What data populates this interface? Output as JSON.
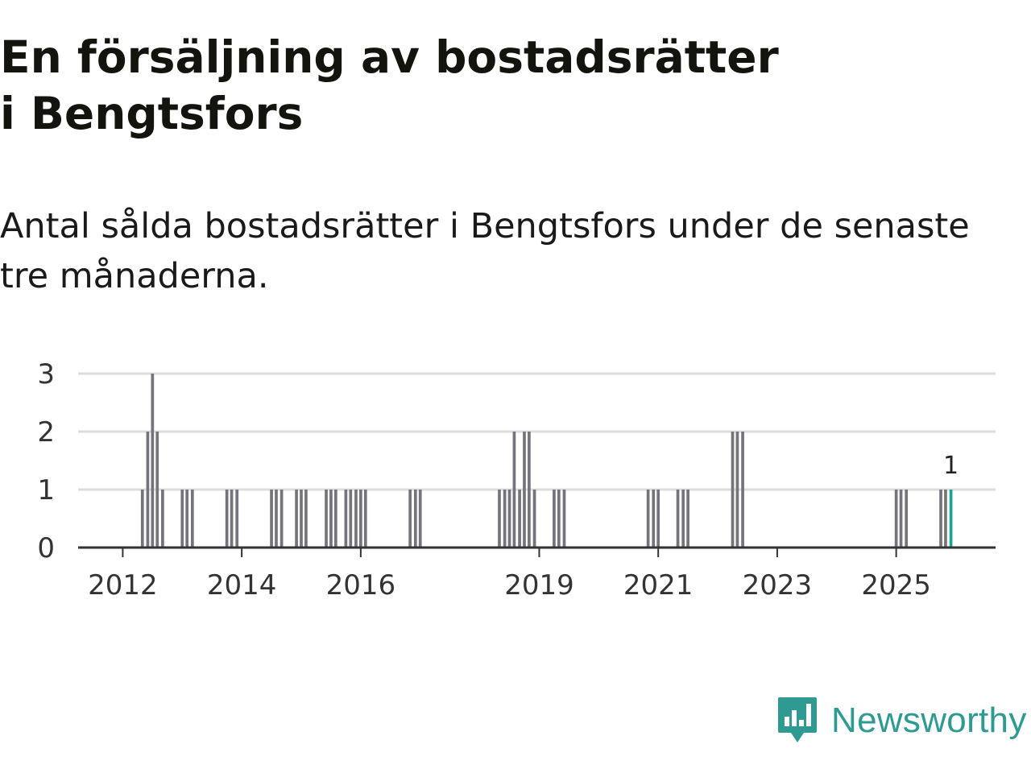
{
  "header": {
    "title": "En försäljning av bostadsrätter i Bengtsfors",
    "subtitle": "Antal sålda bostadsrätter i Bengtsfors under de senaste tre månaderna."
  },
  "brand": {
    "name": "Newsworthy",
    "color": "#2e9a92"
  },
  "colors": {
    "bar": "#75737b",
    "highlight": "#1aa394",
    "grid": "#dddddd",
    "axis": "#333333"
  },
  "chart_data": {
    "type": "bar",
    "title": "En försäljning av bostadsrätter i Bengtsfors",
    "subtitle": "Antal sålda bostadsrätter i Bengtsfors under de senaste tre månaderna.",
    "xlabel": "",
    "ylabel": "",
    "ylim": [
      0,
      3
    ],
    "xlim": [
      2011.25,
      2026.67
    ],
    "grid": true,
    "y_ticks": [
      0,
      1,
      2,
      3
    ],
    "x_ticks": [
      2012,
      2014,
      2016,
      2019,
      2021,
      2023,
      2025
    ],
    "bar_width_years": 0.05,
    "series": [
      {
        "name": "Sålda bostadsrätter",
        "points": [
          {
            "x": 2012.33,
            "y": 1
          },
          {
            "x": 2012.42,
            "y": 2
          },
          {
            "x": 2012.5,
            "y": 3
          },
          {
            "x": 2012.58,
            "y": 2
          },
          {
            "x": 2012.67,
            "y": 1
          },
          {
            "x": 2013.0,
            "y": 1
          },
          {
            "x": 2013.08,
            "y": 1
          },
          {
            "x": 2013.17,
            "y": 1
          },
          {
            "x": 2013.75,
            "y": 1
          },
          {
            "x": 2013.83,
            "y": 1
          },
          {
            "x": 2013.92,
            "y": 1
          },
          {
            "x": 2014.5,
            "y": 1
          },
          {
            "x": 2014.58,
            "y": 1
          },
          {
            "x": 2014.67,
            "y": 1
          },
          {
            "x": 2014.92,
            "y": 1
          },
          {
            "x": 2015.0,
            "y": 1
          },
          {
            "x": 2015.08,
            "y": 1
          },
          {
            "x": 2015.42,
            "y": 1
          },
          {
            "x": 2015.5,
            "y": 1
          },
          {
            "x": 2015.58,
            "y": 1
          },
          {
            "x": 2015.75,
            "y": 1
          },
          {
            "x": 2015.83,
            "y": 1
          },
          {
            "x": 2015.92,
            "y": 1
          },
          {
            "x": 2016.0,
            "y": 1
          },
          {
            "x": 2016.08,
            "y": 1
          },
          {
            "x": 2016.83,
            "y": 1
          },
          {
            "x": 2016.92,
            "y": 1
          },
          {
            "x": 2017.0,
            "y": 1
          },
          {
            "x": 2018.33,
            "y": 1
          },
          {
            "x": 2018.42,
            "y": 1
          },
          {
            "x": 2018.5,
            "y": 1
          },
          {
            "x": 2018.58,
            "y": 2
          },
          {
            "x": 2018.67,
            "y": 1
          },
          {
            "x": 2018.75,
            "y": 2
          },
          {
            "x": 2018.83,
            "y": 2
          },
          {
            "x": 2018.92,
            "y": 1
          },
          {
            "x": 2019.25,
            "y": 1
          },
          {
            "x": 2019.33,
            "y": 1
          },
          {
            "x": 2019.42,
            "y": 1
          },
          {
            "x": 2020.83,
            "y": 1
          },
          {
            "x": 2020.92,
            "y": 1
          },
          {
            "x": 2021.0,
            "y": 1
          },
          {
            "x": 2021.33,
            "y": 1
          },
          {
            "x": 2021.42,
            "y": 1
          },
          {
            "x": 2021.5,
            "y": 1
          },
          {
            "x": 2022.25,
            "y": 2
          },
          {
            "x": 2022.33,
            "y": 2
          },
          {
            "x": 2022.42,
            "y": 2
          },
          {
            "x": 2025.0,
            "y": 1
          },
          {
            "x": 2025.08,
            "y": 1
          },
          {
            "x": 2025.17,
            "y": 1
          },
          {
            "x": 2025.75,
            "y": 1
          },
          {
            "x": 2025.83,
            "y": 1
          },
          {
            "x": 2025.92,
            "y": 1,
            "highlight": true
          }
        ]
      }
    ],
    "annotations": [
      {
        "x": 2025.92,
        "y": 1,
        "text": "1"
      }
    ]
  }
}
